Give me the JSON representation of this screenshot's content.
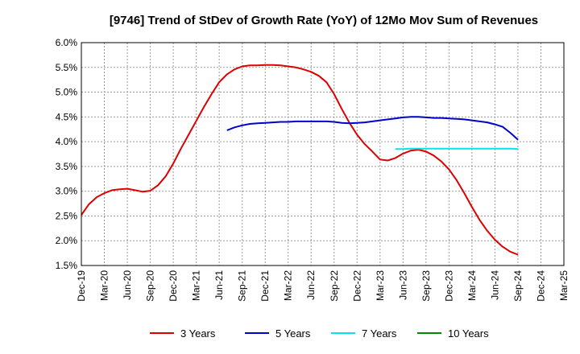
{
  "chart_data": {
    "type": "line",
    "title": "[9746]  Trend of StDev of Growth Rate (YoY) of 12Mo Mov Sum of Revenues",
    "xlabel": "",
    "ylabel": "",
    "ylim": [
      1.5,
      6.0
    ],
    "grid": true,
    "legend_position": "bottom",
    "x_ticks": [
      "Dec-19",
      "Mar-20",
      "Jun-20",
      "Sep-20",
      "Dec-20",
      "Mar-21",
      "Jun-21",
      "Sep-21",
      "Dec-21",
      "Mar-22",
      "Jun-22",
      "Sep-22",
      "Dec-22",
      "Mar-23",
      "Jun-23",
      "Sep-23",
      "Dec-23",
      "Mar-24",
      "Jun-24",
      "Sep-24",
      "Dec-24",
      "Mar-25"
    ],
    "y_ticks": [
      {
        "value": 1.5,
        "label": "1.5%"
      },
      {
        "value": 2.0,
        "label": "2.0%"
      },
      {
        "value": 2.5,
        "label": "2.5%"
      },
      {
        "value": 3.0,
        "label": "3.0%"
      },
      {
        "value": 3.5,
        "label": "3.5%"
      },
      {
        "value": 4.0,
        "label": "4.0%"
      },
      {
        "value": 4.5,
        "label": "4.5%"
      },
      {
        "value": 5.0,
        "label": "5.0%"
      },
      {
        "value": 5.5,
        "label": "5.5%"
      },
      {
        "value": 6.0,
        "label": "6.0%"
      }
    ],
    "series": [
      {
        "name": "3 Years",
        "color": "#dd0000",
        "values": [
          2.52,
          2.74,
          2.88,
          2.96,
          3.02,
          3.04,
          3.05,
          3.02,
          2.99,
          3.01,
          3.12,
          3.3,
          3.56,
          3.86,
          4.14,
          4.42,
          4.7,
          4.96,
          5.2,
          5.36,
          5.46,
          5.52,
          5.54,
          5.54,
          5.55,
          5.55,
          5.54,
          5.52,
          5.5,
          5.46,
          5.41,
          5.33,
          5.2,
          4.96,
          4.66,
          4.38,
          4.14,
          3.95,
          3.8,
          3.64,
          3.62,
          3.67,
          3.76,
          3.82,
          3.84,
          3.8,
          3.72,
          3.6,
          3.44,
          3.22,
          2.96,
          2.68,
          2.42,
          2.2,
          2.02,
          1.88,
          1.78,
          1.72
        ]
      },
      {
        "name": "5 Years",
        "color": "#0000cc",
        "values": [
          null,
          null,
          null,
          null,
          null,
          null,
          null,
          null,
          null,
          null,
          null,
          null,
          null,
          null,
          null,
          null,
          null,
          null,
          null,
          4.23,
          4.29,
          4.33,
          4.36,
          4.37,
          4.38,
          4.39,
          4.4,
          4.4,
          4.41,
          4.41,
          4.41,
          4.41,
          4.41,
          4.4,
          4.38,
          4.37,
          4.38,
          4.39,
          4.41,
          4.43,
          4.45,
          4.47,
          4.49,
          4.5,
          4.5,
          4.49,
          4.48,
          4.48,
          4.47,
          4.46,
          4.45,
          4.43,
          4.41,
          4.39,
          4.35,
          4.3,
          4.18,
          4.04
        ]
      },
      {
        "name": "7 Years",
        "color": "#00e5e5",
        "values": [
          null,
          null,
          null,
          null,
          null,
          null,
          null,
          null,
          null,
          null,
          null,
          null,
          null,
          null,
          null,
          null,
          null,
          null,
          null,
          null,
          null,
          null,
          null,
          null,
          null,
          null,
          null,
          null,
          null,
          null,
          null,
          null,
          null,
          null,
          null,
          null,
          null,
          null,
          null,
          null,
          null,
          3.85,
          3.85,
          3.86,
          3.86,
          3.86,
          3.86,
          3.86,
          3.86,
          3.86,
          3.86,
          3.86,
          3.86,
          3.86,
          3.86,
          3.86,
          3.86,
          3.85
        ]
      },
      {
        "name": "10 Years",
        "color": "#008800",
        "values": []
      }
    ]
  }
}
